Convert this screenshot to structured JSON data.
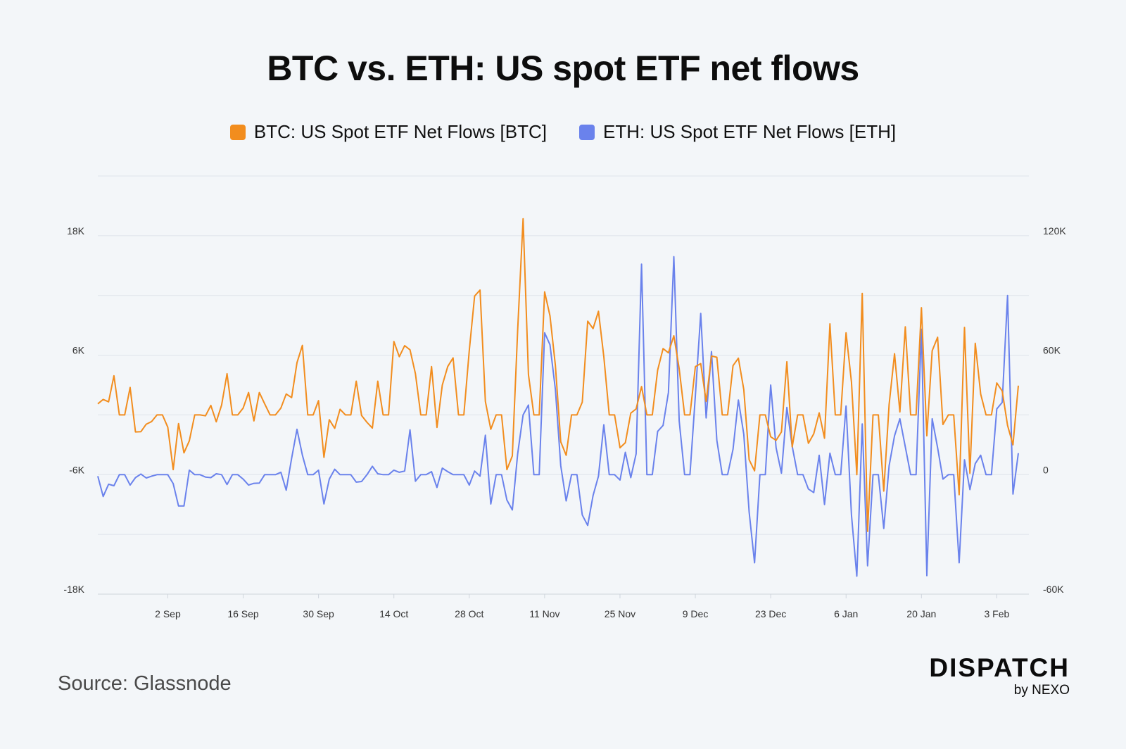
{
  "title": "BTC vs. ETH: US spot ETF net flows",
  "source": "Source: Glassnode",
  "logo": {
    "main": "DISPATCH",
    "sub": "by NEXO"
  },
  "chart_data": {
    "type": "line",
    "title": "BTC vs. ETH: US spot ETF net flows",
    "x_start": "2024-08-20",
    "x_step": "1 day",
    "x_ticks": [
      {
        "label": "2 Sep",
        "day": 13
      },
      {
        "label": "16 Sep",
        "day": 27
      },
      {
        "label": "30 Sep",
        "day": 41
      },
      {
        "label": "14 Oct",
        "day": 55
      },
      {
        "label": "28 Oct",
        "day": 69
      },
      {
        "label": "11 Nov",
        "day": 83
      },
      {
        "label": "25 Nov",
        "day": 97
      },
      {
        "label": "9 Dec",
        "day": 111
      },
      {
        "label": "23 Dec",
        "day": 125
      },
      {
        "label": "6 Jan",
        "day": 139
      },
      {
        "label": "20 Jan",
        "day": 153
      },
      {
        "label": "3 Feb",
        "day": 167
      }
    ],
    "y_left": {
      "range": [
        -18000,
        24000
      ],
      "grid_step": 6000,
      "ticks": [
        {
          "v": 18000,
          "label": "18K"
        },
        {
          "v": 6000,
          "label": "6K"
        },
        {
          "v": -6000,
          "label": "-6K"
        },
        {
          "v": -18000,
          "label": "-18K"
        }
      ]
    },
    "y_right": {
      "range": [
        -60000,
        150000
      ],
      "ticks": [
        {
          "v": 120000,
          "label": "120K"
        },
        {
          "v": 60000,
          "label": "60K"
        },
        {
          "v": 0,
          "label": "0"
        },
        {
          "v": -60000,
          "label": "-60K"
        }
      ]
    },
    "grid": true,
    "legend_position": "top-center",
    "series": [
      {
        "name": "BTC: US Spot ETF Net Flows [BTC]",
        "axis": "left",
        "color": "#F28D1E",
        "values": [
          1110,
          1560,
          1320,
          3930,
          0,
          0,
          2760,
          -1710,
          -1680,
          -930,
          -660,
          0,
          0,
          -1230,
          -5490,
          -870,
          -3810,
          -2610,
          0,
          0,
          -90,
          960,
          -690,
          990,
          4140,
          0,
          0,
          690,
          2250,
          -600,
          2250,
          1110,
          0,
          0,
          690,
          2100,
          1740,
          5250,
          6990,
          0,
          0,
          1440,
          -4260,
          -480,
          -1350,
          570,
          0,
          0,
          3390,
          -60,
          -750,
          -1320,
          3390,
          0,
          0,
          7380,
          5850,
          6960,
          6540,
          4140,
          0,
          0,
          4860,
          -1260,
          3000,
          4860,
          5730,
          0,
          0,
          6450,
          11940,
          12540,
          1350,
          -1440,
          0,
          0,
          -5490,
          -4110,
          8550,
          19710,
          4050,
          0,
          0,
          12360,
          9960,
          4950,
          -2700,
          -4050,
          0,
          0,
          1290,
          9420,
          8670,
          10410,
          5850,
          0,
          0,
          -3300,
          -2790,
          180,
          600,
          2850,
          0,
          0,
          4500,
          6660,
          6240,
          7950,
          4650,
          0,
          0,
          4860,
          5160,
          1350,
          5910,
          5790,
          0,
          0,
          4950,
          5700,
          2550,
          -4500,
          -5610,
          0,
          0,
          -2190,
          -2550,
          -1710,
          5340,
          -3210,
          0,
          0,
          -2850,
          -1890,
          210,
          -2340,
          9150,
          0,
          0,
          8250,
          3300,
          -6000,
          12210,
          -11700,
          0,
          0,
          -7650,
          1050,
          6150,
          300,
          8850,
          0,
          0,
          10770,
          -2100,
          6450,
          7800,
          -960,
          0,
          0,
          -8010,
          8790,
          -5850,
          7200,
          2100,
          0,
          0,
          3210,
          2400,
          -1050,
          -3000,
          2940
        ]
      },
      {
        "name": "ETH: US Spot ETF Net Flows [ETH]",
        "axis": "right",
        "color": "#6A82EC",
        "values": [
          -750,
          -10950,
          -4800,
          -5550,
          0,
          0,
          -5250,
          -1500,
          300,
          -1650,
          -750,
          0,
          0,
          0,
          -4500,
          -15750,
          -15750,
          2250,
          0,
          0,
          -1200,
          -1500,
          450,
          0,
          -4950,
          0,
          0,
          -2250,
          -5250,
          -4350,
          -4200,
          0,
          0,
          0,
          1200,
          -7800,
          8250,
          22800,
          9750,
          0,
          0,
          2250,
          -14700,
          -2250,
          2700,
          0,
          0,
          0,
          -3750,
          -3450,
          0,
          4200,
          450,
          0,
          0,
          2250,
          1200,
          1800,
          22500,
          -3300,
          0,
          0,
          1500,
          -6450,
          3300,
          1500,
          0,
          0,
          0,
          -5250,
          1800,
          -750,
          19800,
          -14700,
          0,
          0,
          -12750,
          -17700,
          10500,
          30000,
          34950,
          0,
          0,
          71250,
          65250,
          42750,
          4500,
          -13200,
          0,
          0,
          -20250,
          -25500,
          -10500,
          -750,
          25050,
          0,
          0,
          -2700,
          11250,
          -1500,
          10500,
          105750,
          0,
          0,
          21750,
          24750,
          41250,
          109500,
          27000,
          0,
          0,
          39750,
          81000,
          28500,
          61800,
          17250,
          0,
          0,
          12750,
          37500,
          20250,
          -18750,
          -44250,
          0,
          0,
          45000,
          13500,
          750,
          33750,
          14250,
          0,
          0,
          -7200,
          -9000,
          9750,
          -15000,
          10800,
          0,
          0,
          34500,
          -20250,
          -51000,
          25500,
          -45750,
          0,
          0,
          -27000,
          4500,
          19500,
          28050,
          13950,
          0,
          0,
          73050,
          -50700,
          28050,
          13500,
          -2250,
          0,
          0,
          -44250,
          7500,
          -7500,
          5550,
          9750,
          0,
          0,
          33000,
          36300,
          90000,
          -9750,
          10800
        ]
      }
    ]
  }
}
